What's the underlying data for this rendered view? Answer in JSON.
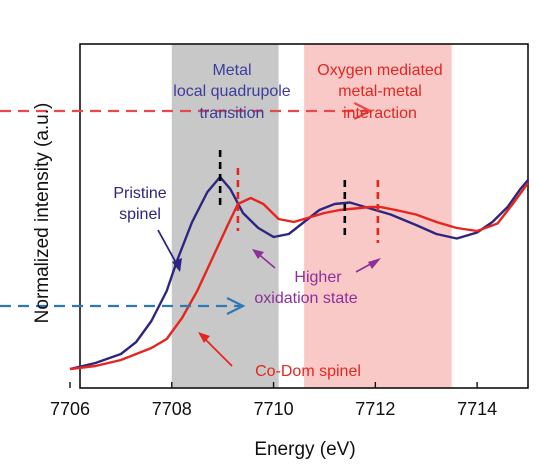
{
  "chart_data": {
    "type": "line",
    "xlabel": "Energy (eV)",
    "ylabel": "Normalized intensity (a.u.)",
    "xlim": [
      7706,
      7715
    ],
    "ylim": [
      0,
      1
    ],
    "x_ticks": [
      "7706",
      "7708",
      "7710",
      "7712",
      "7714"
    ],
    "x_tick_values": [
      7706,
      7708,
      7710,
      7712,
      7714
    ],
    "grid": false,
    "shaded_regions": [
      {
        "x_range": [
          7708.0,
          7710.1
        ],
        "color": "#c8c8c8"
      },
      {
        "x_range": [
          7710.6,
          7713.5
        ],
        "color": "#f9c9c7"
      }
    ],
    "series": [
      {
        "color": "#2c2680",
        "x": [
          7706.0,
          7706.5,
          7707.0,
          7707.3,
          7707.6,
          7707.9,
          7708.1,
          7708.4,
          7708.7,
          7708.95,
          7709.15,
          7709.4,
          7709.7,
          7710.0,
          7710.3,
          7710.6,
          7710.9,
          7711.2,
          7711.5,
          7711.9,
          7712.3,
          7712.8,
          7713.2,
          7713.6,
          7714.0,
          7714.3,
          7714.6,
          7714.85,
          7715.0
        ],
        "values": [
          0.03,
          0.05,
          0.08,
          0.12,
          0.19,
          0.29,
          0.39,
          0.52,
          0.62,
          0.67,
          0.63,
          0.55,
          0.5,
          0.47,
          0.48,
          0.52,
          0.56,
          0.58,
          0.585,
          0.565,
          0.545,
          0.51,
          0.48,
          0.465,
          0.485,
          0.52,
          0.57,
          0.63,
          0.66
        ]
      },
      {
        "color": "#e52620",
        "x": [
          7706.0,
          7706.5,
          7707.0,
          7707.3,
          7707.6,
          7707.9,
          7708.2,
          7708.5,
          7708.8,
          7709.1,
          7709.3,
          7709.55,
          7709.8,
          7710.1,
          7710.4,
          7710.7,
          7711.0,
          7711.3,
          7711.6,
          7711.9,
          7712.1,
          7712.4,
          7712.8,
          7713.2,
          7713.6,
          7714.0,
          7714.4,
          7714.7,
          7715.0
        ],
        "values": [
          0.03,
          0.04,
          0.06,
          0.08,
          0.1,
          0.13,
          0.2,
          0.29,
          0.4,
          0.51,
          0.58,
          0.6,
          0.58,
          0.53,
          0.52,
          0.535,
          0.55,
          0.56,
          0.565,
          0.57,
          0.57,
          0.56,
          0.545,
          0.52,
          0.5,
          0.49,
          0.515,
          0.58,
          0.65
        ]
      }
    ],
    "dashed_markers": [
      {
        "x": 7708.95,
        "y_range": [
          0.56,
          0.76
        ],
        "color": "#000000"
      },
      {
        "x": 7709.3,
        "y_range": [
          0.49,
          0.7
        ],
        "color": "#e52620"
      },
      {
        "x": 7711.4,
        "y_range": [
          0.46,
          0.66
        ],
        "color": "#000000"
      },
      {
        "x": 7712.05,
        "y_range": [
          0.45,
          0.66
        ],
        "color": "#e52620"
      }
    ],
    "arrows": [
      {
        "x_start": 7704.0,
        "x_end": 7711.9,
        "y": 0.89,
        "color": "#e64a4c"
      },
      {
        "x_start": 7704.0,
        "x_end": 7709.4,
        "y": 0.24,
        "color": "#2e78b8"
      }
    ]
  },
  "annotations": {
    "metal_line1": "Metal",
    "metal_line2": "local quadrupole",
    "metal_line3": "transition",
    "oxygen_line1": "Oxygen mediated",
    "oxygen_line2": "metal-metal",
    "oxygen_line3": "interaction",
    "pristine_line1": "Pristine",
    "pristine_line2": "spinel",
    "higher_line1": "Higher",
    "higher_line2": "oxidation state",
    "codom": "Co-Dom spinel"
  },
  "colors": {
    "pristine": "#2c2680",
    "codom": "#e52620",
    "metal_text": "#3d3d9c",
    "oxygen_text": "#e52620",
    "higher_text": "#8e2f9b",
    "gray_band": "#c8c8c8",
    "pink_band": "#f9c9c7"
  }
}
